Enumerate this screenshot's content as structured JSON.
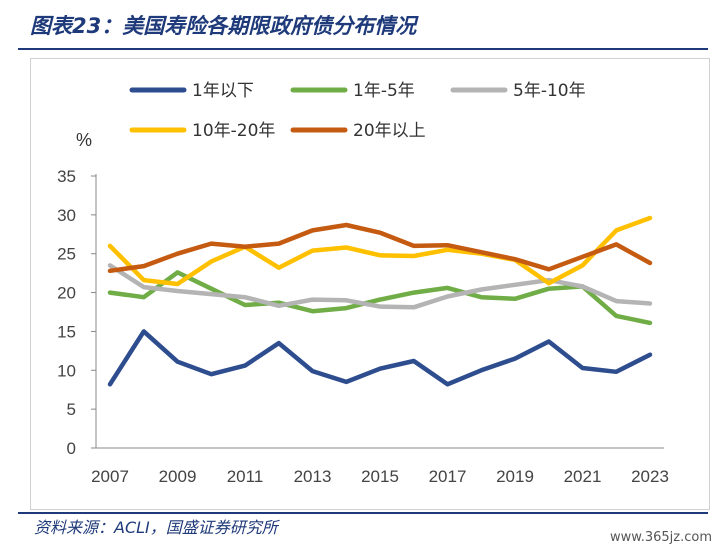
{
  "page": {
    "title": "图表23：美国寿险各期限政府债分布情况",
    "source": "资料来源：ACLI，国盛证券研究所",
    "watermark": "www.365jz.com"
  },
  "chart_data": {
    "type": "line",
    "title": "",
    "xlabel": "",
    "ylabel": "%",
    "ylim": [
      0,
      35
    ],
    "yticks": [
      0,
      5,
      10,
      15,
      20,
      25,
      30,
      35
    ],
    "x": [
      2007,
      2008,
      2009,
      2010,
      2011,
      2012,
      2013,
      2014,
      2015,
      2016,
      2017,
      2018,
      2019,
      2020,
      2021,
      2022,
      2023
    ],
    "xticks": [
      2007,
      2009,
      2011,
      2013,
      2015,
      2017,
      2019,
      2021,
      2023
    ],
    "grid": false,
    "legend_position": "top",
    "series": [
      {
        "name": "1年以下",
        "color": "#2e4d8f",
        "values": [
          8.2,
          15.0,
          11.1,
          9.5,
          10.6,
          13.5,
          9.9,
          8.5,
          10.2,
          11.2,
          8.2,
          10.0,
          11.5,
          13.7,
          10.3,
          9.8,
          12.0
        ]
      },
      {
        "name": "1年-5年",
        "color": "#70ad47",
        "values": [
          20.0,
          19.4,
          22.6,
          20.5,
          18.4,
          18.7,
          17.6,
          18.0,
          19.1,
          20.0,
          20.6,
          19.4,
          19.2,
          20.5,
          20.8,
          17.0,
          16.1
        ]
      },
      {
        "name": "5年-10年",
        "color": "#b4b4b4",
        "values": [
          23.5,
          20.7,
          20.2,
          19.8,
          19.4,
          18.3,
          19.1,
          19.0,
          18.2,
          18.1,
          19.5,
          20.4,
          21.0,
          21.6,
          20.8,
          18.9,
          18.6
        ]
      },
      {
        "name": "10年-20年",
        "color": "#ffc000",
        "values": [
          26.0,
          21.6,
          21.1,
          24.0,
          25.9,
          23.2,
          25.4,
          25.8,
          24.8,
          24.7,
          25.5,
          25.0,
          24.2,
          21.2,
          23.5,
          28.0,
          29.6
        ]
      },
      {
        "name": "20年以上",
        "color": "#c55a11",
        "values": [
          22.8,
          23.4,
          25.0,
          26.3,
          25.9,
          26.3,
          28.0,
          28.7,
          27.7,
          26.0,
          26.1,
          25.2,
          24.3,
          23.0,
          24.6,
          26.2,
          23.8
        ]
      }
    ]
  }
}
